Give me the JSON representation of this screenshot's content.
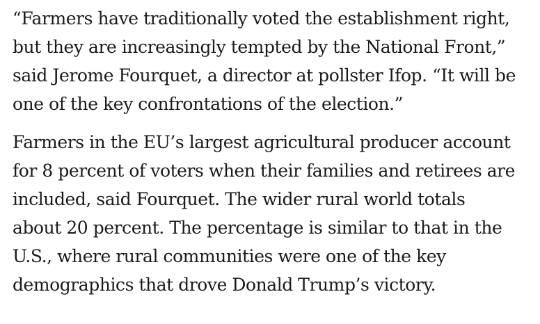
{
  "article": {
    "paragraphs": [
      {
        "lines": [
          "“Farmers have traditionally voted the establishment right,",
          "but they are increasingly tempted by the National Front,”",
          "said Jerome Fourquet, a director at pollster Ifop. “It will be",
          "one of the key confrontations of the election.”"
        ]
      },
      {
        "lines": [
          "Farmers in the EU’s largest agricultural producer account",
          "for 8 percent of voters when their families and retirees are",
          "included, said Fourquet. The wider rural world totals",
          "about 20 percent. The percentage is similar to that in the",
          "U.S., where rural communities were one of the key",
          "demographics that drove Donald Trump’s victory."
        ]
      }
    ]
  }
}
